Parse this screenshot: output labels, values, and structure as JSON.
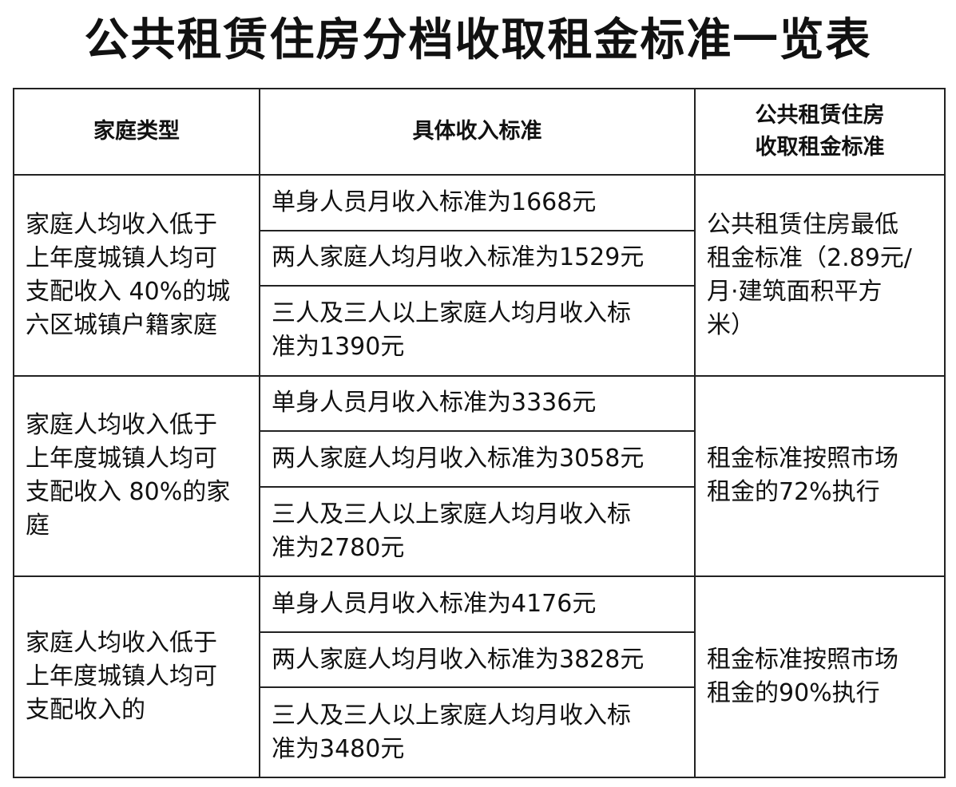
{
  "title": "公共租赁住房分档收取租金标准一览表",
  "headers": {
    "family_type": "家庭类型",
    "income_standard": "具体收入标准",
    "rent_standard": [
      "公共租赁住房",
      "收取租金标准"
    ]
  },
  "groups": [
    {
      "family_type": [
        "家庭人均收入低于",
        "上年度城镇人均可",
        "支配收入 40%的城",
        "六区城镇户籍家庭"
      ],
      "incomes": [
        [
          "单身人员月收入标准为1668元"
        ],
        [
          "两人家庭人均月收入标准为1529元"
        ],
        [
          "三人及三人以上家庭人均月收入标",
          "准为1390元"
        ]
      ],
      "rent": [
        "公共租赁住房最低",
        "租金标准（2.89元/",
        "月·建筑面积平方",
        "米）"
      ]
    },
    {
      "family_type": [
        "家庭人均收入低于",
        "上年度城镇人均可",
        "支配收入 80%的家",
        "庭"
      ],
      "incomes": [
        [
          "单身人员月收入标准为3336元"
        ],
        [
          "两人家庭人均月收入标准为3058元"
        ],
        [
          "三人及三人以上家庭人均月收入标",
          "准为2780元"
        ]
      ],
      "rent": [
        "租金标准按照市场",
        "租金的72%执行"
      ]
    },
    {
      "family_type": [
        "家庭人均收入低于",
        "上年度城镇人均可",
        "支配收入的"
      ],
      "incomes": [
        [
          "单身人员月收入标准为4176元"
        ],
        [
          "两人家庭人均月收入标准为3828元"
        ],
        [
          "三人及三人以上家庭人均月收入标",
          "准为3480元"
        ]
      ],
      "rent": [
        "租金标准按照市场",
        "租金的90%执行"
      ]
    }
  ]
}
